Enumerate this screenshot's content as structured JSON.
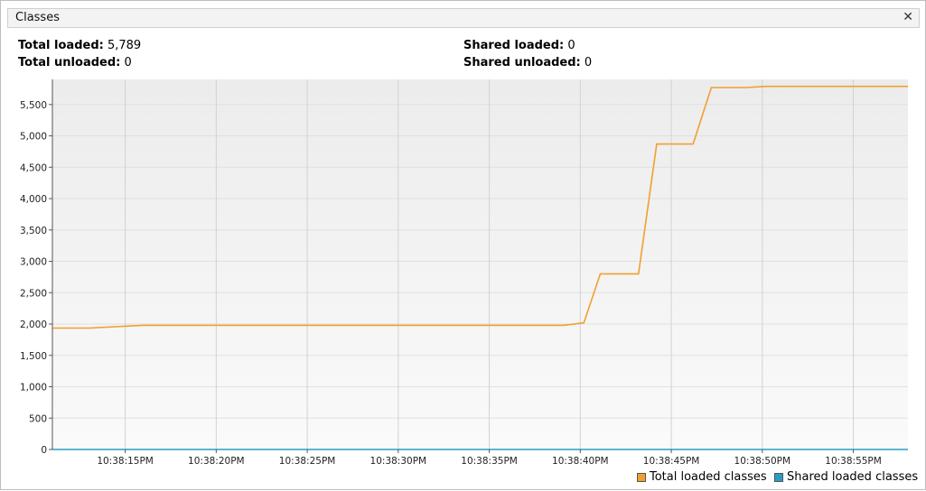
{
  "window": {
    "title": "Classes"
  },
  "stats": {
    "total_loaded_label": "Total loaded:",
    "total_loaded_value": "5,789",
    "total_unloaded_label": "Total unloaded:",
    "total_unloaded_value": "0",
    "shared_loaded_label": "Shared loaded:",
    "shared_loaded_value": "0",
    "shared_unloaded_label": "Shared unloaded:",
    "shared_unloaded_value": "0"
  },
  "colors": {
    "total": "#f0a030",
    "shared": "#2a9dc4"
  },
  "chart_data": {
    "type": "line",
    "ylim": [
      0,
      5900
    ],
    "xlim_seconds": [
      11,
      58
    ],
    "y_ticks": [
      0,
      500,
      1000,
      1500,
      2000,
      2500,
      3000,
      3500,
      4000,
      4500,
      5000,
      5500
    ],
    "y_tick_labels": [
      "0",
      "500",
      "1,000",
      "1,500",
      "2,000",
      "2,500",
      "3,000",
      "3,500",
      "4,000",
      "4,500",
      "5,000",
      "5,500"
    ],
    "x_ticks_seconds": [
      15,
      20,
      25,
      30,
      35,
      40,
      45,
      50,
      55
    ],
    "x_tick_labels": [
      "10:38:15PM",
      "10:38:20PM",
      "10:38:25PM",
      "10:38:30PM",
      "10:38:35PM",
      "10:38:40PM",
      "10:38:45PM",
      "10:38:50PM",
      "10:38:55PM"
    ],
    "grid": true,
    "legend_placement": "bottom-right",
    "series": [
      {
        "name": "Total loaded classes",
        "x_seconds": [
          11,
          13,
          15,
          16,
          39.1,
          40.2,
          41.1,
          43.2,
          44.2,
          46.2,
          47.2,
          49.1,
          50.2,
          58
        ],
        "values": [
          1935,
          1935,
          1965,
          1980,
          1980,
          2020,
          2800,
          2800,
          4870,
          4870,
          5770,
          5770,
          5789,
          5789
        ]
      },
      {
        "name": "Shared loaded classes",
        "x_seconds": [
          11,
          58
        ],
        "values": [
          0,
          0
        ]
      }
    ]
  }
}
